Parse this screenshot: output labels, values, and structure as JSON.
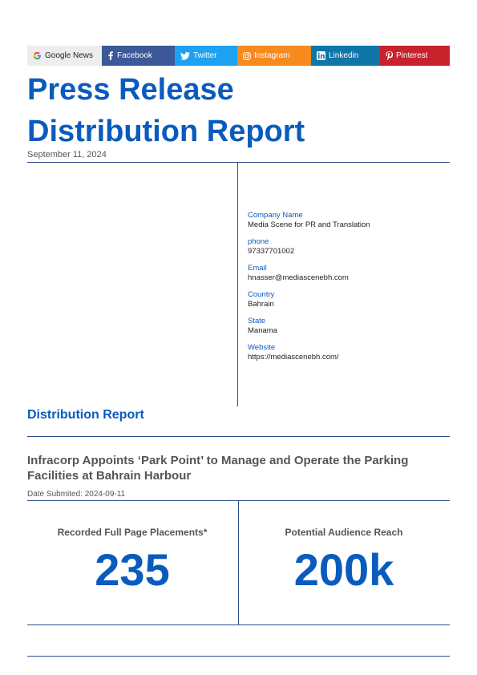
{
  "social": {
    "google": "Google News",
    "facebook": "Facebook",
    "twitter": "Twitter",
    "instagram": "Instagram",
    "linkedin": "Linkedin",
    "pinterest": "Pinterest"
  },
  "header": {
    "title_line1": "Press Release",
    "title_line2": "Distribution Report",
    "date": "September 11, 2024"
  },
  "company": {
    "company_name_label": "Company Name",
    "company_name": "Media Scene for PR and Translation",
    "phone_label": "phone",
    "phone": "97337701002",
    "email_label": "Email",
    "email": "hnasser@mediascenebh.com",
    "country_label": "Country",
    "country": "Bahrain",
    "state_label": "State",
    "state": "Manama",
    "website_label": "Website",
    "website": "https://mediascenebh.com/"
  },
  "report": {
    "section_title": "Distribution Report",
    "press_title": "Infracorp Appoints ‘Park Point’ to Manage and Operate the Parking Facilities at Bahrain Harbour",
    "date_submitted": "Date Submited: 2024-09-11"
  },
  "stats": {
    "placements_label": "Recorded Full Page Placements*",
    "placements_value": "235",
    "reach_label": "Potential Audience Reach",
    "reach_value": "200k"
  },
  "colors": {
    "accent": "#0a5bbd",
    "rule": "#2b4f8f"
  }
}
